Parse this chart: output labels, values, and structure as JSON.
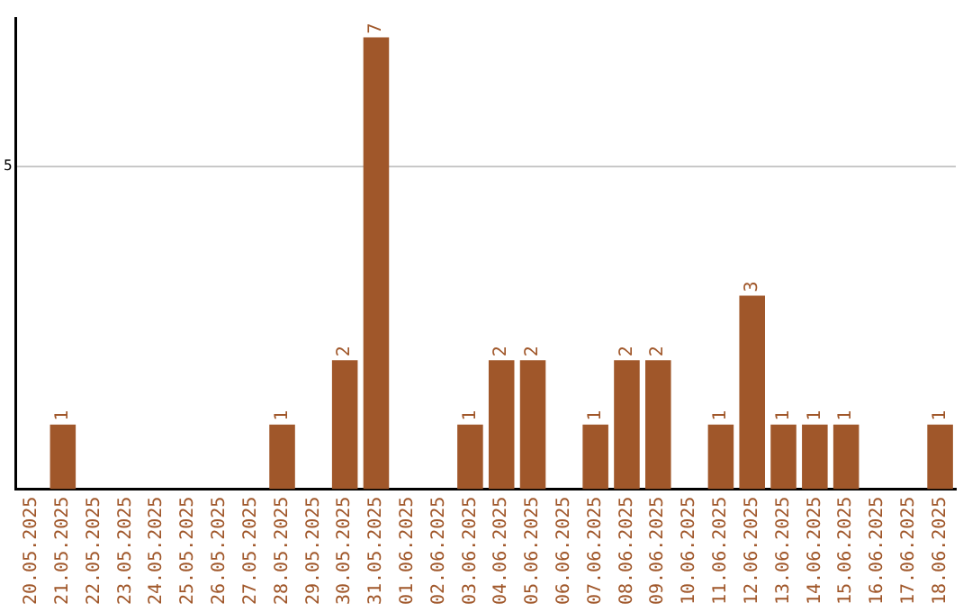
{
  "chart_data": {
    "type": "bar",
    "categories": [
      "20.05.2025",
      "21.05.2025",
      "22.05.2025",
      "23.05.2025",
      "24.05.2025",
      "25.05.2025",
      "26.05.2025",
      "27.05.2025",
      "28.05.2025",
      "29.05.2025",
      "30.05.2025",
      "31.05.2025",
      "01.06.2025",
      "02.06.2025",
      "03.06.2025",
      "04.06.2025",
      "05.06.2025",
      "06.06.2025",
      "07.06.2025",
      "08.06.2025",
      "09.06.2025",
      "10.06.2025",
      "11.06.2025",
      "12.06.2025",
      "13.06.2025",
      "14.06.2025",
      "15.06.2025",
      "16.06.2025",
      "17.06.2025",
      "18.06.2025"
    ],
    "values": [
      0,
      1,
      0,
      0,
      0,
      0,
      0,
      0,
      1,
      0,
      2,
      7,
      0,
      0,
      1,
      2,
      2,
      0,
      1,
      2,
      2,
      0,
      1,
      3,
      1,
      1,
      1,
      0,
      0,
      1
    ],
    "value_labels": [
      null,
      "1",
      null,
      null,
      null,
      null,
      null,
      null,
      "1",
      null,
      "2",
      "7",
      null,
      null,
      "1",
      "2",
      "2",
      null,
      "1",
      "2",
      "2",
      null,
      "1",
      "3",
      "1",
      "1",
      "1",
      null,
      null,
      "1"
    ],
    "color": "#a0572a",
    "ylim": [
      0,
      7.3
    ],
    "yticks": [
      5
    ],
    "grid": "y",
    "legend": false
  }
}
